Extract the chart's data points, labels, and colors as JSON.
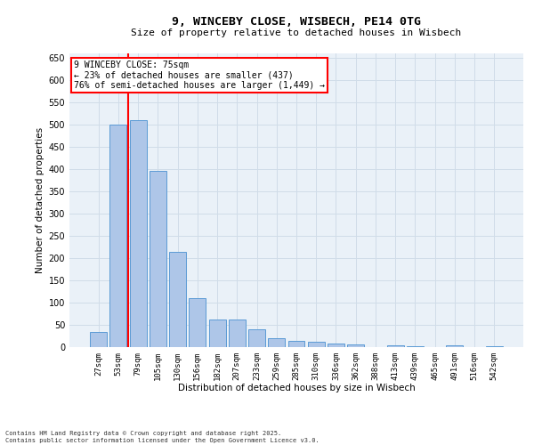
{
  "title_line1": "9, WINCEBY CLOSE, WISBECH, PE14 0TG",
  "title_line2": "Size of property relative to detached houses in Wisbech",
  "xlabel": "Distribution of detached houses by size in Wisbech",
  "ylabel": "Number of detached properties",
  "categories": [
    "27sqm",
    "53sqm",
    "79sqm",
    "105sqm",
    "130sqm",
    "156sqm",
    "182sqm",
    "207sqm",
    "233sqm",
    "259sqm",
    "285sqm",
    "310sqm",
    "336sqm",
    "362sqm",
    "388sqm",
    "413sqm",
    "439sqm",
    "465sqm",
    "491sqm",
    "516sqm",
    "542sqm"
  ],
  "values": [
    34,
    500,
    510,
    397,
    214,
    111,
    62,
    62,
    41,
    21,
    14,
    12,
    8,
    7,
    0,
    5,
    2,
    0,
    4,
    0,
    3
  ],
  "bar_color": "#aec6e8",
  "bar_edge_color": "#5b9bd5",
  "vline_color": "red",
  "annotation_text": "9 WINCEBY CLOSE: 75sqm\n← 23% of detached houses are smaller (437)\n76% of semi-detached houses are larger (1,449) →",
  "annotation_box_color": "white",
  "annotation_box_edge_color": "red",
  "ylim": [
    0,
    660
  ],
  "yticks": [
    0,
    50,
    100,
    150,
    200,
    250,
    300,
    350,
    400,
    450,
    500,
    550,
    600,
    650
  ],
  "footer_text": "Contains HM Land Registry data © Crown copyright and database right 2025.\nContains public sector information licensed under the Open Government Licence v3.0.",
  "grid_color": "#d0dce8",
  "background_color": "#eaf1f8",
  "fig_width": 6.0,
  "fig_height": 5.0,
  "title1_fontsize": 9.5,
  "title2_fontsize": 8.0,
  "tick_fontsize": 6.5,
  "ylabel_fontsize": 7.5,
  "xlabel_fontsize": 7.5,
  "annotation_fontsize": 7.0,
  "footer_fontsize": 5.0
}
